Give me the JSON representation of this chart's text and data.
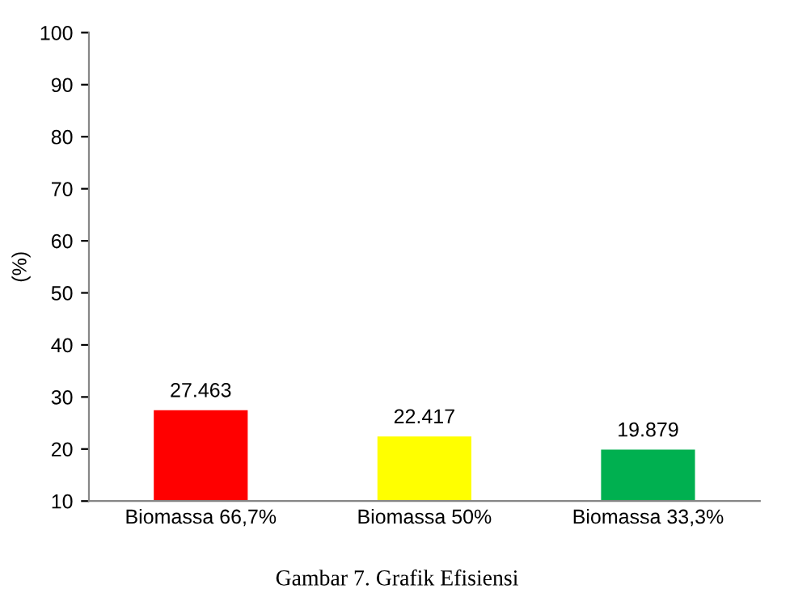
{
  "chart_data": {
    "type": "bar",
    "ylabel": "(%)",
    "categories": [
      "Biomassa 66,7%",
      "Biomassa 50%",
      "Biomassa 33,3%"
    ],
    "values": [
      27.463,
      22.417,
      19.879
    ],
    "colors": [
      "#ff0000",
      "#ffff00",
      "#00b050"
    ],
    "ylim": [
      10,
      100
    ],
    "yticks": [
      10,
      20,
      30,
      40,
      50,
      60,
      70,
      80,
      90,
      100
    ],
    "grid": false,
    "legend": false,
    "data_labels": true,
    "annotations": [
      "Gambar 7. Grafik Efisiensi"
    ]
  }
}
